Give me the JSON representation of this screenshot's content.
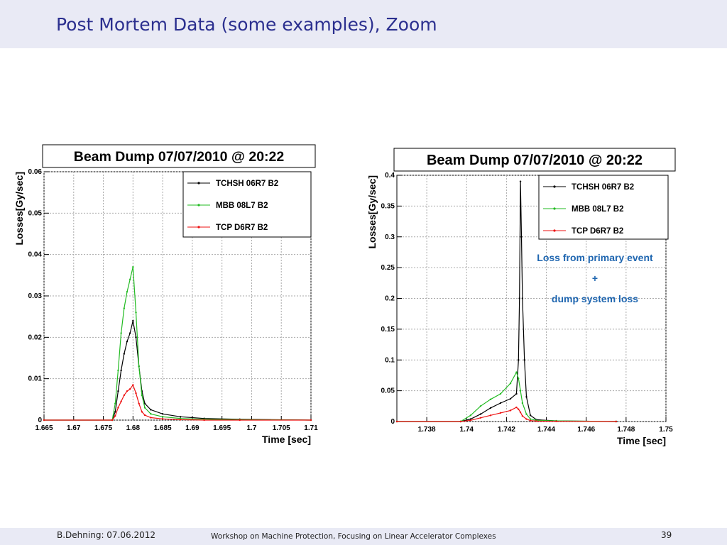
{
  "slide": {
    "title": "Post Mortem Data (some examples), Zoom",
    "footer_left": "B.Dehning: 07.06.2012",
    "footer_center": "Workshop on Machine Protection, Focusing on Linear Accelerator Complexes",
    "page_number": "39",
    "annotation": [
      "Loss from primary event",
      "+",
      "dump system loss"
    ],
    "annotation_color": "#1f66b0"
  },
  "chart_data": [
    {
      "type": "line",
      "title": "Beam Dump 07/07/2010 @ 20:22",
      "xlabel": "Time [sec]",
      "ylabel": "Losses[Gy/sec]",
      "xlim": [
        1.665,
        1.71
      ],
      "ylim": [
        0,
        0.06
      ],
      "xticks": [
        "1.665",
        "1.67",
        "1.675",
        "1.68",
        "1.685",
        "1.69",
        "1.695",
        "1.7",
        "1.705",
        "1.71"
      ],
      "yticks": [
        "0",
        "0.01",
        "0.02",
        "0.03",
        "0.04",
        "0.05",
        "0.06"
      ],
      "grid": true,
      "legend_position": "top-right",
      "series": [
        {
          "name": "TCHSH 06R7 B2",
          "color": "#000000",
          "x": [
            1.665,
            1.6765,
            1.677,
            1.6775,
            1.678,
            1.6785,
            1.679,
            1.6795,
            1.68,
            1.6805,
            1.681,
            1.6815,
            1.682,
            1.683,
            1.685,
            1.688,
            1.692,
            1.698,
            1.71
          ],
          "y": [
            0,
            0,
            0.002,
            0.007,
            0.012,
            0.016,
            0.019,
            0.021,
            0.024,
            0.02,
            0.013,
            0.007,
            0.004,
            0.0025,
            0.0015,
            0.0008,
            0.0004,
            0.0002,
            0
          ]
        },
        {
          "name": "MBB 08L7 B2",
          "color": "#22bb22",
          "x": [
            1.665,
            1.6765,
            1.677,
            1.6775,
            1.678,
            1.6785,
            1.679,
            1.6795,
            1.68,
            1.6805,
            1.681,
            1.6815,
            1.682,
            1.683,
            1.685,
            1.688,
            1.692,
            1.698,
            1.71
          ],
          "y": [
            0,
            0,
            0.004,
            0.012,
            0.021,
            0.027,
            0.031,
            0.034,
            0.037,
            0.026,
            0.013,
            0.006,
            0.003,
            0.0015,
            0.0008,
            0.0004,
            0.0002,
            0.0001,
            0
          ]
        },
        {
          "name": "TCP D6R7 B2",
          "color": "#ee1111",
          "x": [
            1.665,
            1.6765,
            1.677,
            1.6775,
            1.678,
            1.6785,
            1.679,
            1.6795,
            1.68,
            1.6805,
            1.681,
            1.6815,
            1.682,
            1.683,
            1.685,
            1.688,
            1.692,
            1.698,
            1.71
          ],
          "y": [
            0,
            0,
            0.001,
            0.003,
            0.0045,
            0.006,
            0.007,
            0.0075,
            0.0085,
            0.0065,
            0.004,
            0.002,
            0.0012,
            0.0006,
            0.0003,
            0.0001,
            0,
            0,
            0
          ]
        }
      ]
    },
    {
      "type": "line",
      "title": "Beam Dump 07/07/2010 @ 20:22",
      "xlabel": "Time [sec]",
      "ylabel": "Losses[Gy/sec]",
      "xlim": [
        1.7365,
        1.75
      ],
      "ylim": [
        0,
        0.4
      ],
      "xticks": [
        "1.738",
        "1.74",
        "1.742",
        "1.744",
        "1.746",
        "1.748",
        "1.75"
      ],
      "yticks": [
        "0",
        "0.05",
        "0.1",
        "0.15",
        "0.2",
        "0.25",
        "0.3",
        "0.35",
        "0.4"
      ],
      "grid": true,
      "legend_position": "top-right",
      "series": [
        {
          "name": "TCHSH 06R7 B2",
          "color": "#000000",
          "x": [
            1.7365,
            1.7397,
            1.7402,
            1.7407,
            1.7412,
            1.7417,
            1.7422,
            1.7425,
            1.7426,
            1.74265,
            1.7427,
            1.74275,
            1.7428,
            1.7429,
            1.743,
            1.7432,
            1.7435,
            1.7445,
            1.7475
          ],
          "y": [
            0,
            0,
            0.004,
            0.012,
            0.022,
            0.03,
            0.037,
            0.045,
            0.1,
            0.2,
            0.39,
            0.3,
            0.2,
            0.1,
            0.04,
            0.01,
            0.003,
            0.001,
            0
          ]
        },
        {
          "name": "MBB 08L7 B2",
          "color": "#22bb22",
          "x": [
            1.7365,
            1.7397,
            1.7402,
            1.7407,
            1.7412,
            1.7417,
            1.7422,
            1.7425,
            1.7426,
            1.7427,
            1.7428,
            1.743,
            1.7432,
            1.7435,
            1.7445,
            1.7475
          ],
          "y": [
            0,
            0,
            0.01,
            0.025,
            0.036,
            0.045,
            0.062,
            0.08,
            0.07,
            0.05,
            0.03,
            0.012,
            0.004,
            0.002,
            0.001,
            0
          ]
        },
        {
          "name": "TCP D6R7 B2",
          "color": "#ee1111",
          "x": [
            1.7365,
            1.7397,
            1.7402,
            1.7407,
            1.7412,
            1.7417,
            1.7422,
            1.7425,
            1.7426,
            1.7427,
            1.7428,
            1.743,
            1.7432,
            1.7435,
            1.7445,
            1.7475
          ],
          "y": [
            0,
            0,
            0.002,
            0.006,
            0.01,
            0.014,
            0.018,
            0.023,
            0.02,
            0.015,
            0.009,
            0.004,
            0.0015,
            0.0007,
            0.0003,
            0
          ]
        }
      ]
    }
  ]
}
